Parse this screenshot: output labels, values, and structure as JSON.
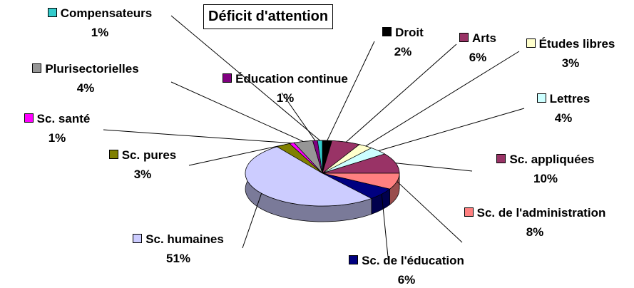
{
  "chart_data": {
    "type": "pie",
    "title": "Déficit d'attention",
    "categories": [
      "Droit",
      "Arts",
      "Études libres",
      "Lettres",
      "Sc. appliquées",
      "Sc. de l'administration",
      "Sc. de l'éducation",
      "Sc. humaines",
      "Sc. pures",
      "Sc. santé",
      "Plurisectorielles",
      "Éducation continue",
      "Compensateurs"
    ],
    "values": [
      2,
      6,
      3,
      4,
      10,
      8,
      6,
      51,
      3,
      1,
      4,
      1,
      1
    ],
    "value_labels": [
      "2%",
      "6%",
      "3%",
      "4%",
      "10%",
      "8%",
      "6%",
      "51%",
      "3%",
      "1%",
      "4%",
      "1%",
      "1%"
    ],
    "colors": [
      "#000000",
      "#993366",
      "#ffffcc",
      "#ccffff",
      "#993366",
      "#ff8080",
      "#000080",
      "#ccccff",
      "#808000",
      "#ff00ff",
      "#969696",
      "#800080",
      "#33cccc"
    ]
  }
}
